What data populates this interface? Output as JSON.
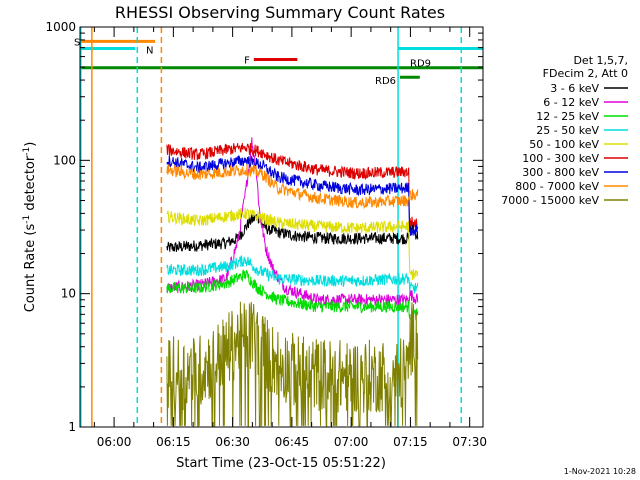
{
  "chart_data": {
    "type": "line",
    "title": "RHESSI Observing Summary Count Rates",
    "xlabel": "Start Time (23-Oct-15 05:51:22)",
    "ylabel": "Count Rate (s⁻¹ detector⁻¹)",
    "ylabel_base": "Count Rate (s",
    "ylabel_sup1": "-1",
    "ylabel_mid": " detector",
    "ylabel_sup2": "-1",
    "ylabel_end": ")",
    "yscale": "log",
    "ylim": [
      1,
      1000
    ],
    "xlim_min": [
      0,
      102
    ],
    "x_ticks": [
      {
        "label": "06:00",
        "t": 8.63
      },
      {
        "label": "06:15",
        "t": 23.63
      },
      {
        "label": "06:30",
        "t": 38.63
      },
      {
        "label": "06:45",
        "t": 53.63
      },
      {
        "label": "07:00",
        "t": 68.63
      },
      {
        "label": "07:15",
        "t": 83.63
      },
      {
        "label": "07:30",
        "t": 98.63
      }
    ],
    "y_ticks": [
      {
        "label": "1",
        "v": 1
      },
      {
        "label": "10",
        "v": 10
      },
      {
        "label": "100",
        "v": 100
      },
      {
        "label": "1000",
        "v": 1000
      }
    ],
    "legend_header": [
      "Det 1,5,7,",
      "FDecim 2, Att 0"
    ],
    "series": [
      {
        "name": "3 - 6 keV",
        "color": "#000000",
        "values": [
          [
            22,
            22
          ],
          [
            30,
            23
          ],
          [
            37,
            24
          ],
          [
            40,
            26
          ],
          [
            43,
            35
          ],
          [
            45,
            38
          ],
          [
            47,
            31
          ],
          [
            50,
            29
          ],
          [
            55,
            27
          ],
          [
            62,
            26
          ],
          [
            70,
            26
          ],
          [
            80,
            26
          ],
          [
            83.2,
            26
          ],
          [
            83.4,
            32
          ],
          [
            85.5,
            27
          ]
        ]
      },
      {
        "name": "6 - 12 keV",
        "color": "#dd00dd",
        "values": [
          [
            22,
            11
          ],
          [
            30,
            11.5
          ],
          [
            37,
            13
          ],
          [
            40,
            25
          ],
          [
            42,
            60
          ],
          [
            43.5,
            140
          ],
          [
            44.5,
            90
          ],
          [
            45.5,
            40
          ],
          [
            47,
            22
          ],
          [
            49,
            15
          ],
          [
            52,
            11
          ],
          [
            60,
            9
          ],
          [
            70,
            9
          ],
          [
            83.2,
            9
          ],
          [
            83.4,
            10
          ],
          [
            85.5,
            9
          ]
        ]
      },
      {
        "name": "12 - 25 keV",
        "color": "#00dd00",
        "values": [
          [
            22,
            11
          ],
          [
            30,
            11
          ],
          [
            37,
            12
          ],
          [
            42,
            14
          ],
          [
            45,
            11
          ],
          [
            50,
            9
          ],
          [
            60,
            8
          ],
          [
            70,
            8
          ],
          [
            83.2,
            8
          ],
          [
            83.4,
            7
          ],
          [
            85.5,
            7
          ]
        ]
      },
      {
        "name": "25 - 50 keV",
        "color": "#00dddd",
        "values": [
          [
            22,
            15
          ],
          [
            30,
            15
          ],
          [
            37,
            16
          ],
          [
            42,
            18
          ],
          [
            45,
            15
          ],
          [
            50,
            13
          ],
          [
            60,
            12.5
          ],
          [
            70,
            12.5
          ],
          [
            83.2,
            13
          ],
          [
            83.4,
            11
          ],
          [
            85.5,
            11
          ]
        ]
      },
      {
        "name": "50 - 100 keV",
        "color": "#dddd00",
        "values": [
          [
            22,
            38
          ],
          [
            30,
            35
          ],
          [
            37,
            38
          ],
          [
            42,
            40
          ],
          [
            46,
            37
          ],
          [
            50,
            34
          ],
          [
            60,
            32
          ],
          [
            70,
            31
          ],
          [
            83.2,
            32
          ],
          [
            83.4,
            14
          ],
          [
            85.5,
            14
          ]
        ]
      },
      {
        "name": "100 - 300 keV",
        "color": "#dd0000",
        "values": [
          [
            22,
            120
          ],
          [
            30,
            110
          ],
          [
            37,
            120
          ],
          [
            42,
            125
          ],
          [
            46,
            115
          ],
          [
            50,
            100
          ],
          [
            60,
            85
          ],
          [
            70,
            80
          ],
          [
            83.2,
            82
          ],
          [
            83.4,
            35
          ],
          [
            85.5,
            33
          ]
        ]
      },
      {
        "name": "300 - 800 keV",
        "color": "#0000dd",
        "values": [
          [
            22,
            100
          ],
          [
            30,
            88
          ],
          [
            37,
            95
          ],
          [
            42,
            100
          ],
          [
            46,
            92
          ],
          [
            50,
            75
          ],
          [
            60,
            65
          ],
          [
            70,
            60
          ],
          [
            83.2,
            62
          ],
          [
            83.4,
            30
          ],
          [
            85.5,
            30
          ]
        ]
      },
      {
        "name": "800 - 7000 keV",
        "color": "#ff8800",
        "values": [
          [
            22,
            85
          ],
          [
            30,
            78
          ],
          [
            37,
            82
          ],
          [
            42,
            85
          ],
          [
            46,
            80
          ],
          [
            50,
            62
          ],
          [
            60,
            52
          ],
          [
            70,
            48
          ],
          [
            83.2,
            50
          ],
          [
            83.4,
            55
          ],
          [
            85.5,
            55
          ]
        ]
      },
      {
        "name": "7000 - 15000 keV",
        "color": "#808000",
        "values": [
          [
            22,
            2.5
          ],
          [
            30,
            2.6
          ],
          [
            36,
            3.5
          ],
          [
            40,
            4.5
          ],
          [
            44,
            5
          ],
          [
            48,
            3.3
          ],
          [
            55,
            2.6
          ],
          [
            65,
            2.4
          ],
          [
            75,
            2.4
          ],
          [
            83.2,
            2.6
          ],
          [
            83.4,
            4.5
          ],
          [
            85.5,
            5
          ]
        ]
      }
    ],
    "flags": [
      {
        "label": "S",
        "color": "#ff8800",
        "t_start": 0,
        "t_end": 19,
        "level": 780
      },
      {
        "label": "N",
        "color": "#00dddd",
        "t_start": 0,
        "t_end": 14,
        "level": 690
      },
      {
        "label": "F",
        "color": "#dd0000",
        "t_start": 44,
        "t_end": 55,
        "level": 570
      },
      {
        "label": "RD9",
        "color": "#008800",
        "t_start": 0,
        "t_end": 102,
        "level": 495
      },
      {
        "label": "RD6",
        "color": "#008800",
        "t_start": 81,
        "t_end": 86,
        "level": 420
      }
    ],
    "vlines": [
      {
        "t": 0.2,
        "color": "#00dddd",
        "style": "solid"
      },
      {
        "t": 3,
        "color": "#ff8800",
        "style": "solid"
      },
      {
        "t": 14.5,
        "color": "#00dddd",
        "style": "dashed"
      },
      {
        "t": 20.6,
        "color": "#ff8800",
        "style": "dashed"
      },
      {
        "t": 80.5,
        "color": "#00dddd",
        "style": "solid"
      },
      {
        "t": 96.5,
        "color": "#00dddd",
        "style": "dashed"
      }
    ],
    "cyan_right_bar": {
      "t_start": 80.5,
      "t_end": 102,
      "level": 690
    }
  },
  "footer": {
    "date_stamp": "1-Nov-2021 10:28"
  }
}
